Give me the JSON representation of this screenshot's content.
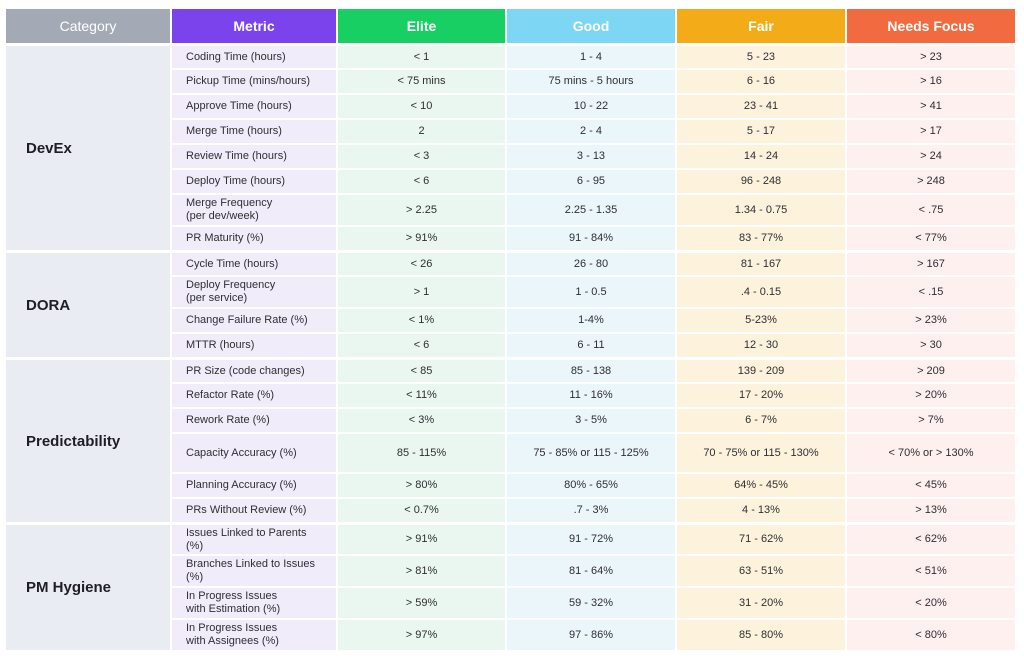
{
  "headers": {
    "category": "Category",
    "metric": "Metric",
    "elite": "Elite",
    "good": "Good",
    "fair": "Fair",
    "focus": "Needs Focus"
  },
  "colors": {
    "category": "#a3aab6",
    "metric": "#7b43eb",
    "elite": "#18cf63",
    "good": "#7dd6f4",
    "fair": "#f3ab18",
    "focus": "#f26a3f"
  },
  "groups": [
    {
      "name": "DevEx",
      "rows": [
        {
          "metric": "Coding Time (hours)",
          "elite": "< 1",
          "good": "1 - 4",
          "fair": "5 - 23",
          "focus": "> 23"
        },
        {
          "metric": "Pickup Time (mins/hours)",
          "elite": "< 75 mins",
          "good": "75 mins - 5 hours",
          "fair": "6 - 16",
          "focus": "> 16"
        },
        {
          "metric": "Approve Time (hours)",
          "elite": "< 10",
          "good": "10 - 22",
          "fair": "23 - 41",
          "focus": "> 41"
        },
        {
          "metric": "Merge Time (hours)",
          "elite": "2",
          "good": "2 - 4",
          "fair": "5 - 17",
          "focus": "> 17"
        },
        {
          "metric": "Review Time (hours)",
          "elite": "< 3",
          "good": "3 - 13",
          "fair": "14 - 24",
          "focus": "> 24"
        },
        {
          "metric": "Deploy Time (hours)",
          "elite": "< 6",
          "good": "6 - 95",
          "fair": "96 - 248",
          "focus": "> 248"
        },
        {
          "metric": "Merge Frequency\n(per dev/week)",
          "elite": "> 2.25",
          "good": "2.25 - 1.35",
          "fair": "1.34 - 0.75",
          "focus": "< .75"
        },
        {
          "metric": "PR Maturity (%)",
          "elite": "> 91%",
          "good": "91 - 84%",
          "fair": "83 - 77%",
          "focus": "< 77%"
        }
      ]
    },
    {
      "name": "DORA",
      "rows": [
        {
          "metric": "Cycle Time (hours)",
          "elite": "< 26",
          "good": "26 - 80",
          "fair": "81 - 167",
          "focus": "> 167"
        },
        {
          "metric": "Deploy Frequency\n(per service)",
          "elite": "> 1",
          "good": "1 - 0.5",
          "fair": ".4 - 0.15",
          "focus": "< .15"
        },
        {
          "metric": "Change Failure Rate (%)",
          "elite": "< 1%",
          "good": "1-4%",
          "fair": "5-23%",
          "focus": "> 23%"
        },
        {
          "metric": "MTTR (hours)",
          "elite": "< 6",
          "good": "6 - 11",
          "fair": "12 - 30",
          "focus": "> 30"
        }
      ]
    },
    {
      "name": "Predictability",
      "rows": [
        {
          "metric": "PR Size (code changes)",
          "elite": "< 85",
          "good": "85 - 138",
          "fair": "139 - 209",
          "focus": "> 209"
        },
        {
          "metric": "Refactor Rate (%)",
          "elite": "< 11%",
          "good": "11 - 16%",
          "fair": "17 - 20%",
          "focus": "> 20%"
        },
        {
          "metric": "Rework Rate (%)",
          "elite": "< 3%",
          "good": "3 - 5%",
          "fair": "6 - 7%",
          "focus": "> 7%"
        },
        {
          "metric": "Capacity Accuracy (%)",
          "elite": "85 - 115%",
          "good": "75 - 85% or 115 - 125%",
          "fair": "70 - 75% or 115 - 130%",
          "focus": "< 70% or > 130%"
        },
        {
          "metric": "Planning Accuracy (%)",
          "elite": "> 80%",
          "good": "80% - 65%",
          "fair": "64% - 45%",
          "focus": "< 45%"
        },
        {
          "metric": "PRs Without Review (%)",
          "elite": "< 0.7%",
          "good": ".7 - 3%",
          "fair": "4 - 13%",
          "focus": "> 13%"
        }
      ]
    },
    {
      "name": "PM Hygiene",
      "rows": [
        {
          "metric": "Issues Linked to Parents\n(%)",
          "elite": "> 91%",
          "good": "91 - 72%",
          "fair": "71 - 62%",
          "focus": "< 62%"
        },
        {
          "metric": "Branches Linked to Issues\n(%)",
          "elite": "> 81%",
          "good": "81 - 64%",
          "fair": "63 - 51%",
          "focus": "< 51%"
        },
        {
          "metric": "In Progress Issues\nwith Estimation (%)",
          "elite": "> 59%",
          "good": "59 - 32%",
          "fair": "31 - 20%",
          "focus": "< 20%"
        },
        {
          "metric": "In Progress Issues\nwith Assignees (%)",
          "elite": "> 97%",
          "good": "97 - 86%",
          "fair": "85 - 80%",
          "focus": "< 80%"
        }
      ]
    }
  ]
}
